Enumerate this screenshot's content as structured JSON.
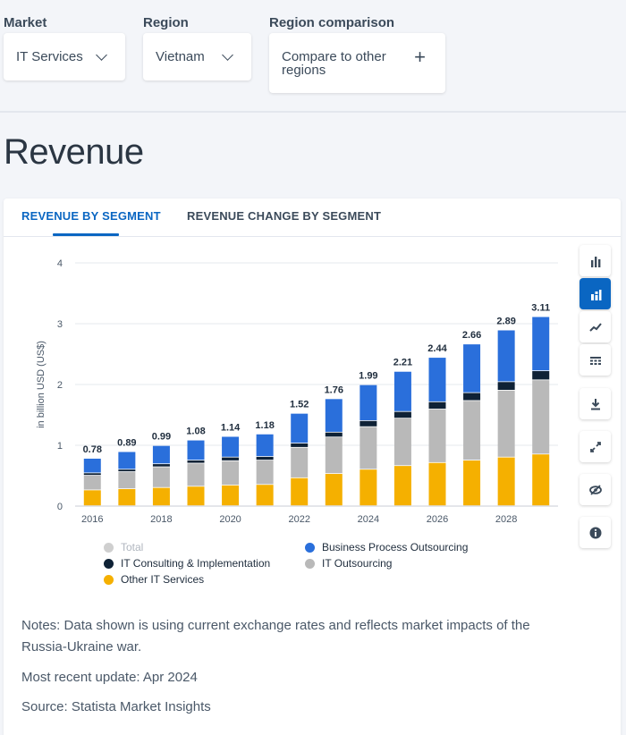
{
  "filters": {
    "market_label": "Market",
    "market_value": "IT Services",
    "region_label": "Region",
    "region_value": "Vietnam",
    "compare_label": "Region comparison",
    "compare_text_line1": "Compare to other",
    "compare_text_line2": "regions"
  },
  "page_title": "Revenue",
  "tabs": [
    {
      "label": "REVENUE BY SEGMENT",
      "active": true
    },
    {
      "label": "REVENUE CHANGE BY SEGMENT",
      "active": false
    }
  ],
  "toolbar": {
    "icons": [
      "bar-chart-icon",
      "stacked-bar-icon",
      "trend-line-icon",
      "table-icon",
      "download-icon",
      "expand-icon",
      "hide-icon",
      "info-icon"
    ],
    "active_index": 1
  },
  "colors": {
    "bpo": "#2a6fdb",
    "consulting": "#0f2236",
    "outsourcing": "#b9b9b9",
    "other": "#f5b000",
    "total": "#cfcfcf",
    "accent": "#0a66c2"
  },
  "chart_data": {
    "type": "bar",
    "stacked": true,
    "title": "",
    "xlabel": "",
    "ylabel": "in billion USD (US$)",
    "ylim": [
      0,
      4
    ],
    "yticks": [
      0,
      1,
      2,
      3,
      4
    ],
    "categories": [
      "2016",
      "2017",
      "2018",
      "2019",
      "2020",
      "2021",
      "2022",
      "2023",
      "2024",
      "2025",
      "2026",
      "2027",
      "2028",
      "2029"
    ],
    "xtick_labels": [
      "2016",
      "",
      "2018",
      "",
      "2020",
      "",
      "2022",
      "",
      "2024",
      "",
      "2026",
      "",
      "2028",
      ""
    ],
    "series": [
      {
        "name": "Other IT Services",
        "key": "other",
        "values": [
          0.26,
          0.28,
          0.3,
          0.32,
          0.34,
          0.35,
          0.46,
          0.53,
          0.6,
          0.66,
          0.71,
          0.75,
          0.8,
          0.85
        ]
      },
      {
        "name": "IT Outsourcing",
        "key": "outsourcing",
        "values": [
          0.24,
          0.28,
          0.34,
          0.38,
          0.4,
          0.4,
          0.5,
          0.6,
          0.7,
          0.78,
          0.88,
          0.98,
          1.1,
          1.22
        ]
      },
      {
        "name": "IT Consulting & Implementation",
        "key": "consulting",
        "values": [
          0.04,
          0.04,
          0.05,
          0.05,
          0.06,
          0.06,
          0.07,
          0.08,
          0.1,
          0.11,
          0.12,
          0.13,
          0.14,
          0.15
        ]
      },
      {
        "name": "Business Process Outsourcing",
        "key": "bpo",
        "values": [
          0.24,
          0.29,
          0.3,
          0.33,
          0.34,
          0.37,
          0.49,
          0.55,
          0.59,
          0.66,
          0.73,
          0.8,
          0.85,
          0.89
        ]
      }
    ],
    "totals": [
      "0.78",
      "0.89",
      "0.99",
      "1.08",
      "1.14",
      "1.18",
      "1.52",
      "1.76",
      "1.99",
      "2.21",
      "2.44",
      "2.66",
      "2.89",
      "3.11"
    ],
    "legend": [
      {
        "name": "Total",
        "key": "total",
        "muted": true
      },
      {
        "name": "Business Process Outsourcing",
        "key": "bpo"
      },
      {
        "name": "IT Consulting & Implementation",
        "key": "consulting"
      },
      {
        "name": "IT Outsourcing",
        "key": "outsourcing"
      },
      {
        "name": "Other IT Services",
        "key": "other"
      }
    ]
  },
  "notes": {
    "line1": "Notes: Data shown is using current exchange rates and reflects market impacts of the Russia-Ukraine war.",
    "update": "Most recent update: Apr 2024",
    "source": "Source: Statista Market Insights"
  }
}
